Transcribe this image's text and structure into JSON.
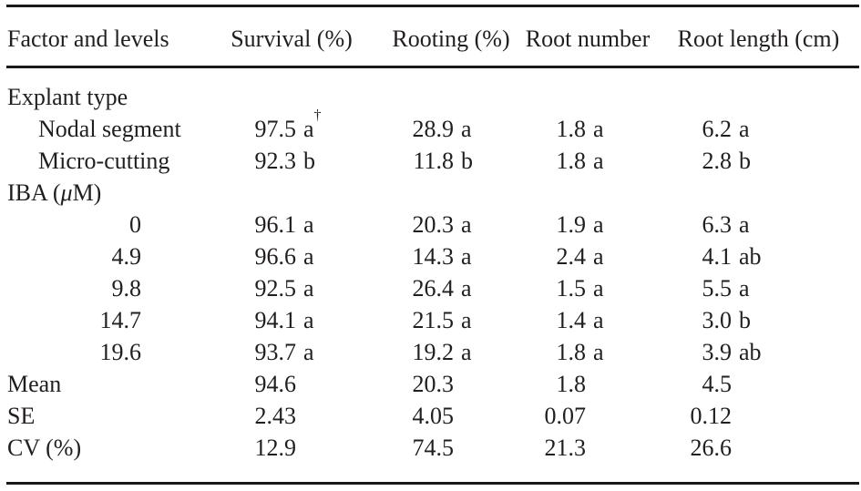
{
  "page": {
    "background": "#ffffff",
    "text_color": "#221e1f",
    "rule_color": "#1c1819"
  },
  "table": {
    "columns": [
      "Factor and levels",
      "Survival (%)",
      "Rooting (%)",
      "Root number",
      "Root length (cm)"
    ],
    "rows": [
      {
        "type": "group",
        "label": "Explant type"
      },
      {
        "type": "sub",
        "label": "Nodal segment",
        "cells": [
          {
            "v": "97.5",
            "sig": "a",
            "marker": "†"
          },
          {
            "v": "28.9",
            "sig": "a"
          },
          {
            "v": "1.8",
            "sig": "a"
          },
          {
            "v": "6.2",
            "sig": "a"
          }
        ]
      },
      {
        "type": "sub",
        "label": "Micro-cutting",
        "cells": [
          {
            "v": "92.3",
            "sig": "b"
          },
          {
            "v": "11.8",
            "sig": "b"
          },
          {
            "v": "1.8",
            "sig": "a"
          },
          {
            "v": "2.8",
            "sig": "b"
          }
        ]
      },
      {
        "type": "group",
        "label": "IBA (μM)",
        "label_parts": {
          "pre": "IBA (",
          "mu": "μ",
          "post": "M)"
        }
      },
      {
        "type": "level",
        "label": "0",
        "cells": [
          {
            "v": "96.1",
            "sig": "a"
          },
          {
            "v": "20.3",
            "sig": "a"
          },
          {
            "v": "1.9",
            "sig": "a"
          },
          {
            "v": "6.3",
            "sig": "a"
          }
        ]
      },
      {
        "type": "level",
        "label": "4.9",
        "cells": [
          {
            "v": "96.6",
            "sig": "a"
          },
          {
            "v": "14.3",
            "sig": "a"
          },
          {
            "v": "2.4",
            "sig": "a"
          },
          {
            "v": "4.1",
            "sig": "ab"
          }
        ]
      },
      {
        "type": "level",
        "label": "9.8",
        "cells": [
          {
            "v": "92.5",
            "sig": "a"
          },
          {
            "v": "26.4",
            "sig": "a"
          },
          {
            "v": "1.5",
            "sig": "a"
          },
          {
            "v": "5.5",
            "sig": "a"
          }
        ]
      },
      {
        "type": "level",
        "label": "14.7",
        "cells": [
          {
            "v": "94.1",
            "sig": "a"
          },
          {
            "v": "21.5",
            "sig": "a"
          },
          {
            "v": "1.4",
            "sig": "a"
          },
          {
            "v": "3.0",
            "sig": "b"
          }
        ]
      },
      {
        "type": "level",
        "label": "19.6",
        "cells": [
          {
            "v": "93.7",
            "sig": "a"
          },
          {
            "v": "19.2",
            "sig": "a"
          },
          {
            "v": "1.8",
            "sig": "a"
          },
          {
            "v": "3.9",
            "sig": "ab"
          }
        ]
      },
      {
        "type": "summary",
        "label": "Mean",
        "cells": [
          {
            "v": "94.6",
            "sig": ""
          },
          {
            "v": "20.3",
            "sig": ""
          },
          {
            "v": "1.8",
            "sig": ""
          },
          {
            "v": "4.5",
            "sig": ""
          }
        ]
      },
      {
        "type": "summary",
        "label": "SE",
        "cells": [
          {
            "v": "2.43",
            "sig": ""
          },
          {
            "v": "4.05",
            "sig": ""
          },
          {
            "v": "0.07",
            "sig": ""
          },
          {
            "v": "0.12",
            "sig": ""
          }
        ]
      },
      {
        "type": "summary",
        "label": "CV (%)",
        "cells": [
          {
            "v": "12.9",
            "sig": ""
          },
          {
            "v": "74.5",
            "sig": ""
          },
          {
            "v": "21.3",
            "sig": ""
          },
          {
            "v": "26.6",
            "sig": ""
          }
        ]
      }
    ]
  }
}
